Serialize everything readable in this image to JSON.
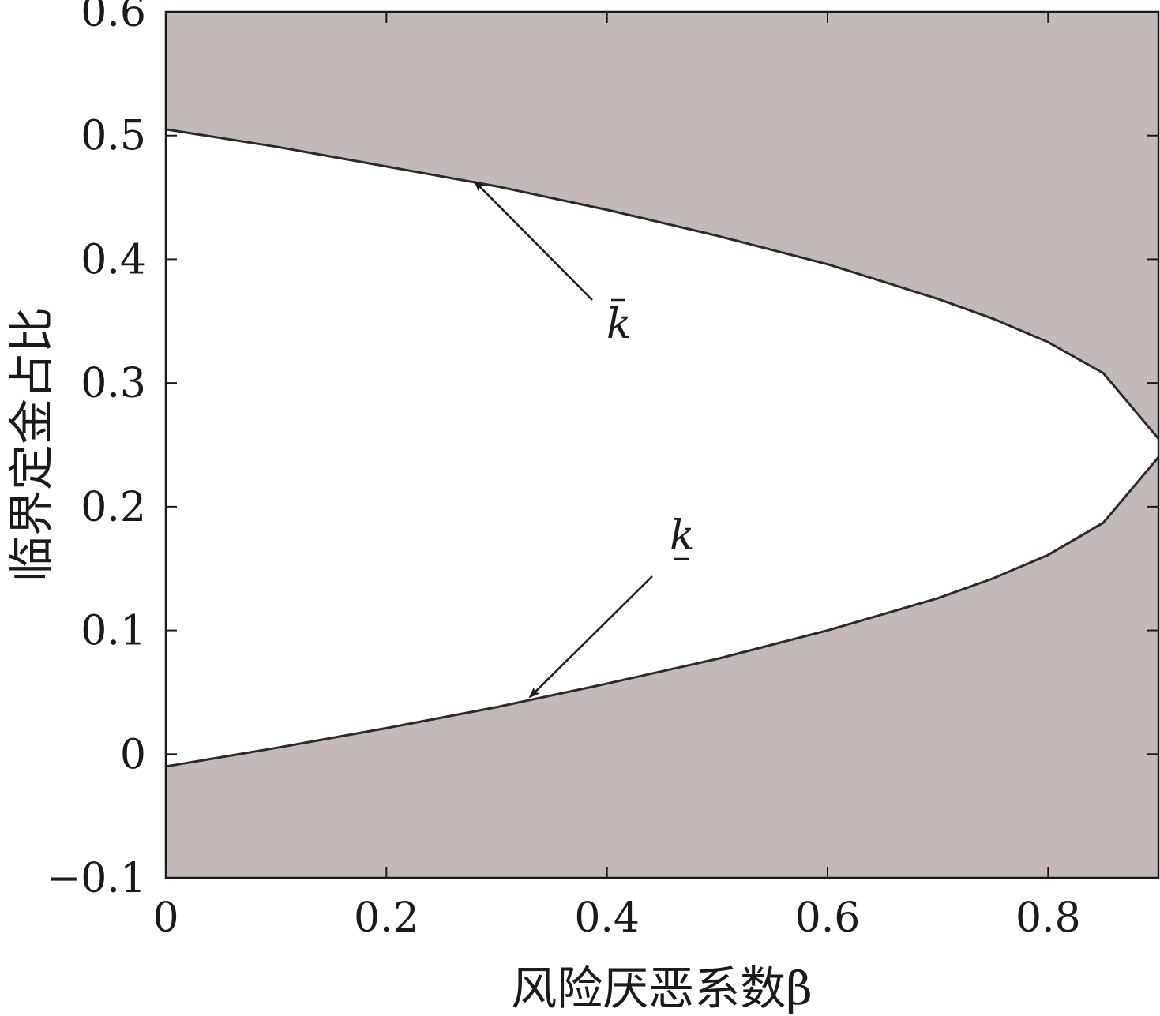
{
  "chart_data": {
    "type": "area",
    "xlabel": "风险厌恶系数β",
    "ylabel": "临界定金占比",
    "xlim": [
      0,
      0.9
    ],
    "ylim": [
      -0.1,
      0.6
    ],
    "x_ticks": [
      "0",
      "0.2",
      "0.4",
      "0.6",
      "0.8"
    ],
    "y_ticks": [
      "−0.1",
      "0",
      "0.1",
      "0.2",
      "0.3",
      "0.4",
      "0.5",
      "0.6"
    ],
    "x_tick_values": [
      0,
      0.2,
      0.4,
      0.6,
      0.8
    ],
    "y_tick_values": [
      -0.1,
      0,
      0.1,
      0.2,
      0.3,
      0.4,
      0.5,
      0.6
    ],
    "shaded_color": "#c2b9b8",
    "line_color": "#2b2b2b",
    "series": [
      {
        "x": [
          0,
          0.1,
          0.2,
          0.3,
          0.4,
          0.5,
          0.6,
          0.7,
          0.75,
          0.8,
          0.85,
          0.9
        ],
        "y": [
          0.505,
          0.491,
          0.475,
          0.459,
          0.44,
          0.419,
          0.396,
          0.368,
          0.352,
          0.333,
          0.308,
          0.255
        ]
      },
      {
        "x": [
          0,
          0.1,
          0.2,
          0.3,
          0.4,
          0.5,
          0.6,
          0.7,
          0.75,
          0.8,
          0.85,
          0.9
        ],
        "y": [
          -0.01,
          0.005,
          0.021,
          0.038,
          0.057,
          0.077,
          0.1,
          0.126,
          0.142,
          0.161,
          0.187,
          0.24
        ]
      }
    ],
    "annotations": [
      {
        "text": "k",
        "mark": "bar-above",
        "point_x": 0.28,
        "point_y": 0.463
      },
      {
        "text": "k",
        "mark": "bar-below",
        "point_x": 0.33,
        "point_y": 0.046
      }
    ]
  }
}
